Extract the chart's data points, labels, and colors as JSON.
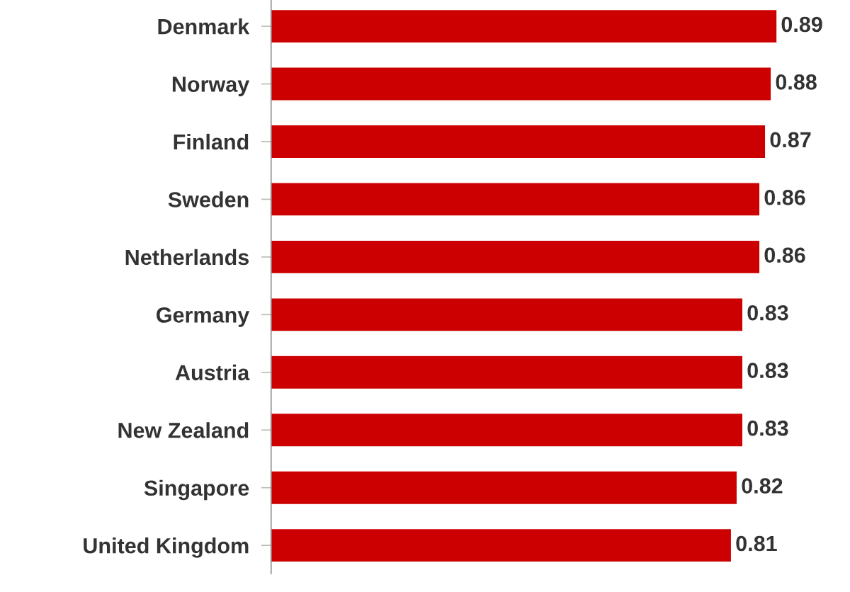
{
  "chart_data": {
    "type": "bar",
    "orientation": "horizontal",
    "categories": [
      "Denmark",
      "Norway",
      "Finland",
      "Sweden",
      "Netherlands",
      "Germany",
      "Austria",
      "New Zealand",
      "Singapore",
      "United Kingdom"
    ],
    "values": [
      0.89,
      0.88,
      0.87,
      0.86,
      0.86,
      0.83,
      0.83,
      0.83,
      0.82,
      0.81
    ],
    "color": "#cc0000",
    "data_labels": true,
    "tick_labels": "y",
    "grid": false,
    "legend": false
  }
}
